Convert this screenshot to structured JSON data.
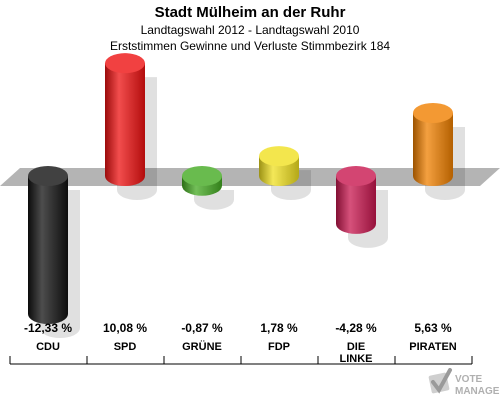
{
  "header": {
    "title": "Stadt Mülheim an der Ruhr",
    "subtitle": "Landtagswahl 2012 - Landtagswahl 2010",
    "subtitle2": "Erststimmen Gewinne und Verluste Stimmbezirk 184"
  },
  "watermark": {
    "text": "VOTE MANAGER",
    "icon": "check-ballot-icon"
  },
  "chart_data": {
    "type": "bar",
    "categories": [
      "CDU",
      "SPD",
      "GRÜNE",
      "FDP",
      "DIE LINKE",
      "PIRATEN"
    ],
    "category_lines": [
      [
        "CDU"
      ],
      [
        "SPD"
      ],
      [
        "GRÜNE"
      ],
      [
        "FDP"
      ],
      [
        "DIE",
        "LINKE"
      ],
      [
        "PIRATEN"
      ]
    ],
    "values": [
      -12.33,
      10.08,
      -0.87,
      1.78,
      -4.28,
      5.63
    ],
    "value_labels": [
      "-12,33 %",
      "10,08 %",
      "-0,87 %",
      "1,78 %",
      "-4,28 %",
      "5,63 %"
    ],
    "colors": [
      "#111111",
      "#ee1111",
      "#44aa22",
      "#f0e020",
      "#c8174f",
      "#f08000"
    ],
    "ylim": [
      -12.33,
      10.08
    ],
    "grid": false
  }
}
